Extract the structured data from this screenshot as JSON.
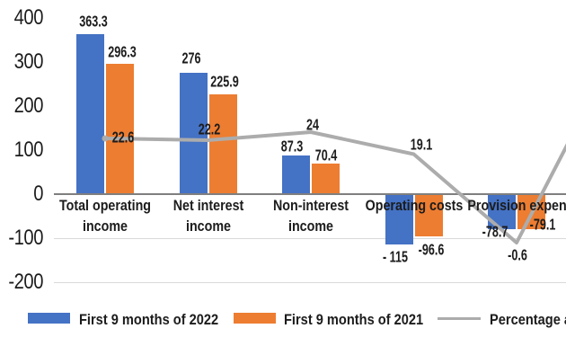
{
  "chart_data": {
    "type": "bar",
    "subtype": "grouped-bar-with-line-combo",
    "title": "",
    "categories": [
      "Total operating income",
      "Net interest income",
      "Non-interest income",
      "Operating costs",
      "Provision expense"
    ],
    "category_display_lines": [
      [
        "Total operating",
        "income"
      ],
      [
        "Net interest",
        "income"
      ],
      [
        "Non-interest",
        "income"
      ],
      [
        "Operating costs"
      ],
      [
        "Provision expense"
      ]
    ],
    "series": [
      {
        "name": "First 9 months of 2022",
        "type": "bar",
        "color": "#4472C4",
        "values": [
          363.3,
          276,
          87.3,
          -115,
          -78.7
        ],
        "data_labels": [
          "363.3",
          "276",
          "87.3",
          "- 115",
          "-78.7"
        ]
      },
      {
        "name": "First 9 months of 2021",
        "type": "bar",
        "color": "#ED7D31",
        "values": [
          296.3,
          225.9,
          70.4,
          -96.6,
          -79.1
        ],
        "data_labels": [
          "296.3",
          "225.9",
          "70.4",
          "-96.6",
          "-79.1"
        ]
      },
      {
        "name": "Percentage a",
        "type": "line",
        "color": "#ACACAC",
        "values": [
          22.6,
          22.2,
          24,
          19.1,
          -0.6
        ],
        "data_labels": [
          "22.6",
          "22.2",
          "24",
          "19.1",
          "-0.6"
        ],
        "note": "line continues rising past the cropped right edge of the image"
      }
    ],
    "y_axis": {
      "tick_values": [
        400,
        300,
        200,
        100,
        0,
        -100,
        -200
      ],
      "tick_labels": [
        "400",
        "300",
        "200",
        "100",
        "0",
        "-100",
        "-200"
      ],
      "range": [
        -200,
        400
      ],
      "gridline_values": [
        -100,
        -200
      ],
      "zero_axis_value": 0
    },
    "legend": {
      "position": "bottom",
      "entries": [
        {
          "label": "First 9 months of 2022",
          "marker": "square",
          "color": "#4472C4"
        },
        {
          "label": "First 9 months of 2021",
          "marker": "square",
          "color": "#ED7D31"
        },
        {
          "label": "Percentage a",
          "marker": "line",
          "color": "#ACACAC",
          "truncated_at_right_edge": true
        }
      ]
    },
    "colors": {
      "bar_2022": "#4472C4",
      "bar_2021": "#ED7D31",
      "growth_line": "#ACACAC",
      "zero_axis": "#7F7F7F",
      "gridline": "#D9D9D9",
      "text": "#1C1C1C"
    }
  }
}
